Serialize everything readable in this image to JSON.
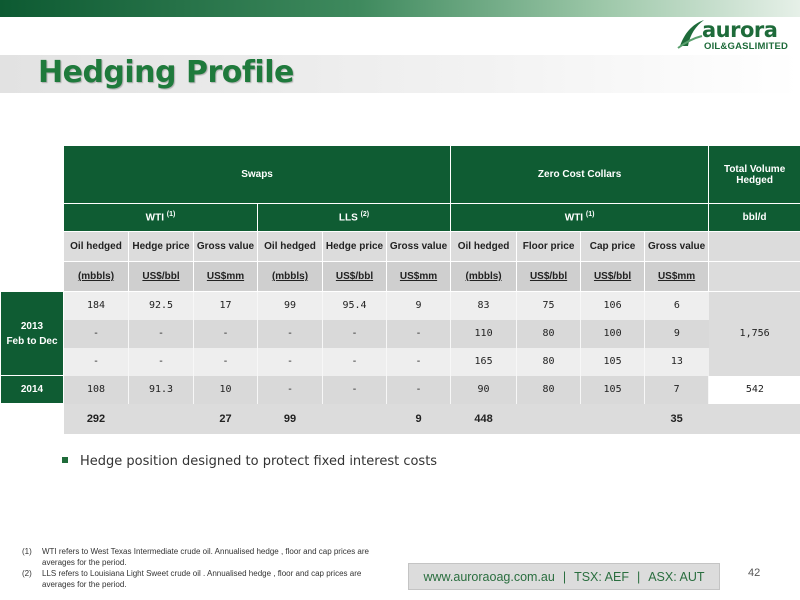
{
  "page": {
    "title": "Hedging Profile",
    "page_number": "42",
    "brand_colors": {
      "primary": "#0f5c33",
      "title": "#1f7a3c"
    }
  },
  "logo": {
    "word": "aurora",
    "sub": "OIL&GASLIMITED",
    "icon": "aurora-swoosh-icon"
  },
  "table": {
    "header": {
      "swaps": "Swaps",
      "zcc": "Zero Cost Collars",
      "total": "Total Volume Hedged",
      "wti_swaps": "WTI",
      "wti_swaps_sup": "(1)",
      "lls": "LLS",
      "lls_sup": "(2)",
      "wti_zcc": "WTI",
      "wti_zcc_sup": "(1)",
      "bbl_d": "bbl/d"
    },
    "columns": [
      "Oil hedged",
      "Hedge price",
      "Gross value",
      "Oil hedged",
      "Hedge price",
      "Gross value",
      "Oil hedged",
      "Floor price",
      "Cap price",
      "Gross value"
    ],
    "units": [
      "(mbbls)",
      "US$/bbl",
      "US$mm",
      "(mbbls)",
      "US$/bbl",
      "US$mm",
      "(mbbls)",
      "US$/bbl",
      "US$/bbl",
      "US$mm"
    ],
    "row_labels": {
      "y2013": "2013",
      "y2013_sub": "Feb to Dec",
      "y2014": "2014"
    },
    "rows": [
      [
        "184",
        "92.5",
        "17",
        "99",
        "95.4",
        "9",
        "83",
        "75",
        "106",
        "6"
      ],
      [
        "-",
        "-",
        "-",
        "-",
        "-",
        "-",
        "110",
        "80",
        "100",
        "9"
      ],
      [
        "-",
        "-",
        "-",
        "-",
        "-",
        "-",
        "165",
        "80",
        "105",
        "13"
      ],
      [
        "108",
        "91.3",
        "10",
        "-",
        "-",
        "-",
        "90",
        "80",
        "105",
        "7"
      ]
    ],
    "totals": {
      "y2013": "1,756",
      "y2014": "542"
    },
    "sums": [
      "292",
      "",
      "27",
      "99",
      "",
      "9",
      "448",
      "",
      "",
      "35"
    ]
  },
  "bullet": "Hedge position designed to protect fixed interest costs",
  "footnotes": [
    {
      "num": "(1)",
      "text": "WTI refers to West Texas Intermediate crude oil.  Annualised hedge , floor and cap prices are averages for the period."
    },
    {
      "num": "(2)",
      "text": "LLS refers to Louisiana Light Sweet crude oil .  Annualised hedge , floor and cap prices are averages for the period."
    }
  ],
  "footer": {
    "website": "www.auroraoag.com.au",
    "sep": "|",
    "tsx": "TSX: AEF",
    "asx": "ASX: AUT"
  }
}
